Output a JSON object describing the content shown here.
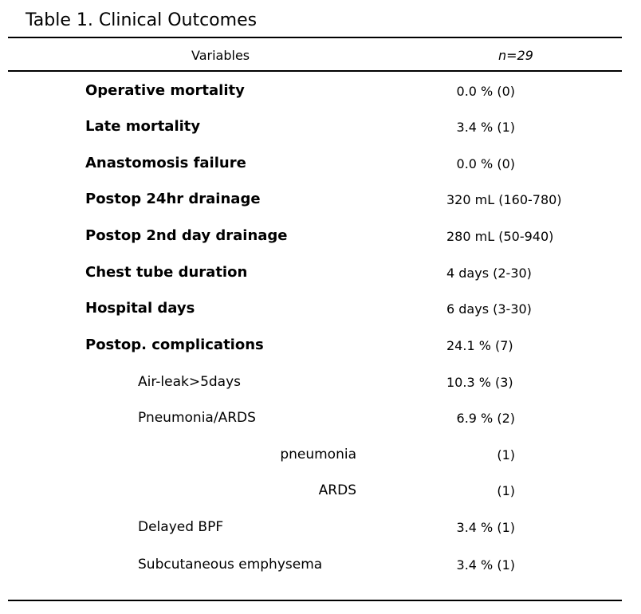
{
  "table": {
    "title": "Table 1. Clinical Outcomes",
    "header": {
      "variables": "Variables",
      "n": "n=29"
    },
    "rows": [
      {
        "label": "Operative mortality",
        "value": "0.0 % (0)"
      },
      {
        "label": "Late mortality",
        "value": "3.4 % (1)"
      },
      {
        "label": "Anastomosis failure",
        "value": "0.0 % (0)"
      },
      {
        "label": "Postop 24hr drainage",
        "value": "320 mL (160-780)"
      },
      {
        "label": "Postop 2nd day drainage",
        "value": "280 mL (50-940)"
      },
      {
        "label": "Chest tube duration",
        "value": "4 days (2-30)"
      },
      {
        "label": "Hospital days",
        "value": "6 days (3-30)"
      },
      {
        "label": "Postop. complications",
        "value": "24.1 % (7)"
      },
      {
        "label": "Air-leak>5days",
        "value": "10.3 % (3)"
      },
      {
        "label": "Pneumonia/ARDS",
        "value": "6.9 % (2)"
      },
      {
        "label": "pneumonia",
        "value": "(1)"
      },
      {
        "label": "ARDS",
        "value": "(1)"
      },
      {
        "label": "Delayed BPF",
        "value": "3.4 % (1)"
      },
      {
        "label": "Subcutaneous emphysema",
        "value": "3.4 % (1)"
      }
    ]
  }
}
